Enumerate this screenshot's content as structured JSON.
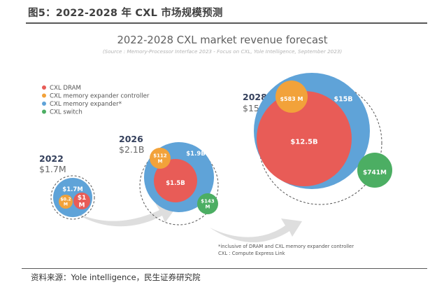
{
  "figure": {
    "title": "图5：2022-2028 年 CXL 市场规模预测",
    "source": "资料来源：Yole intelligence，民生证券研究院"
  },
  "chart_data": {
    "type": "bubble",
    "title": "2022-2028 CXL market revenue forecast",
    "subtitle": "(Source : Memory-Processor Interface 2023 - Focus on CXL, Yole Intelligence, September 2023)",
    "legend": [
      {
        "name": "CXL DRAM",
        "color": "#e85c57"
      },
      {
        "name": "CXL memory expander controller",
        "color": "#f2a23a"
      },
      {
        "name": "CXL memory expander*",
        "color": "#5fa3d8"
      },
      {
        "name": "CXL switch",
        "color": "#4cae63"
      }
    ],
    "legend_position": "top-left",
    "years": [
      {
        "year": "2022",
        "total_label": "$1.7M",
        "total_usd": 1700000,
        "segments": [
          {
            "series": "CXL memory expander*",
            "label": "$1.7M",
            "value_usd": 1700000
          },
          {
            "series": "CXL memory expander controller",
            "label": "$0.2 M",
            "value_usd": 200000
          },
          {
            "series": "CXL DRAM",
            "label": "$1 M",
            "value_usd": 1000000
          }
        ]
      },
      {
        "year": "2026",
        "total_label": "$2.1B",
        "total_usd": 2100000000,
        "segments": [
          {
            "series": "CXL memory expander*",
            "label": "$1.9B",
            "value_usd": 1900000000
          },
          {
            "series": "CXL memory expander controller",
            "label": "$112 M",
            "value_usd": 112000000
          },
          {
            "series": "CXL DRAM",
            "label": "$1.5B",
            "value_usd": 1500000000
          },
          {
            "series": "CXL switch",
            "label": "$143 M",
            "value_usd": 143000000
          }
        ]
      },
      {
        "year": "2028",
        "total_label": "$15.8B",
        "total_usd": 15800000000,
        "segments": [
          {
            "series": "CXL memory expander*",
            "label": "$15B",
            "value_usd": 15000000000
          },
          {
            "series": "CXL memory expander controller",
            "label": "$583 M",
            "value_usd": 583000000
          },
          {
            "series": "CXL DRAM",
            "label": "$12.5B",
            "value_usd": 12500000000
          },
          {
            "series": "CXL switch",
            "label": "$741M",
            "value_usd": 741000000
          }
        ]
      }
    ],
    "notes": [
      "*inclusive of DRAM and CXL memory expander controller",
      "CXL : Compute Express Link"
    ]
  }
}
